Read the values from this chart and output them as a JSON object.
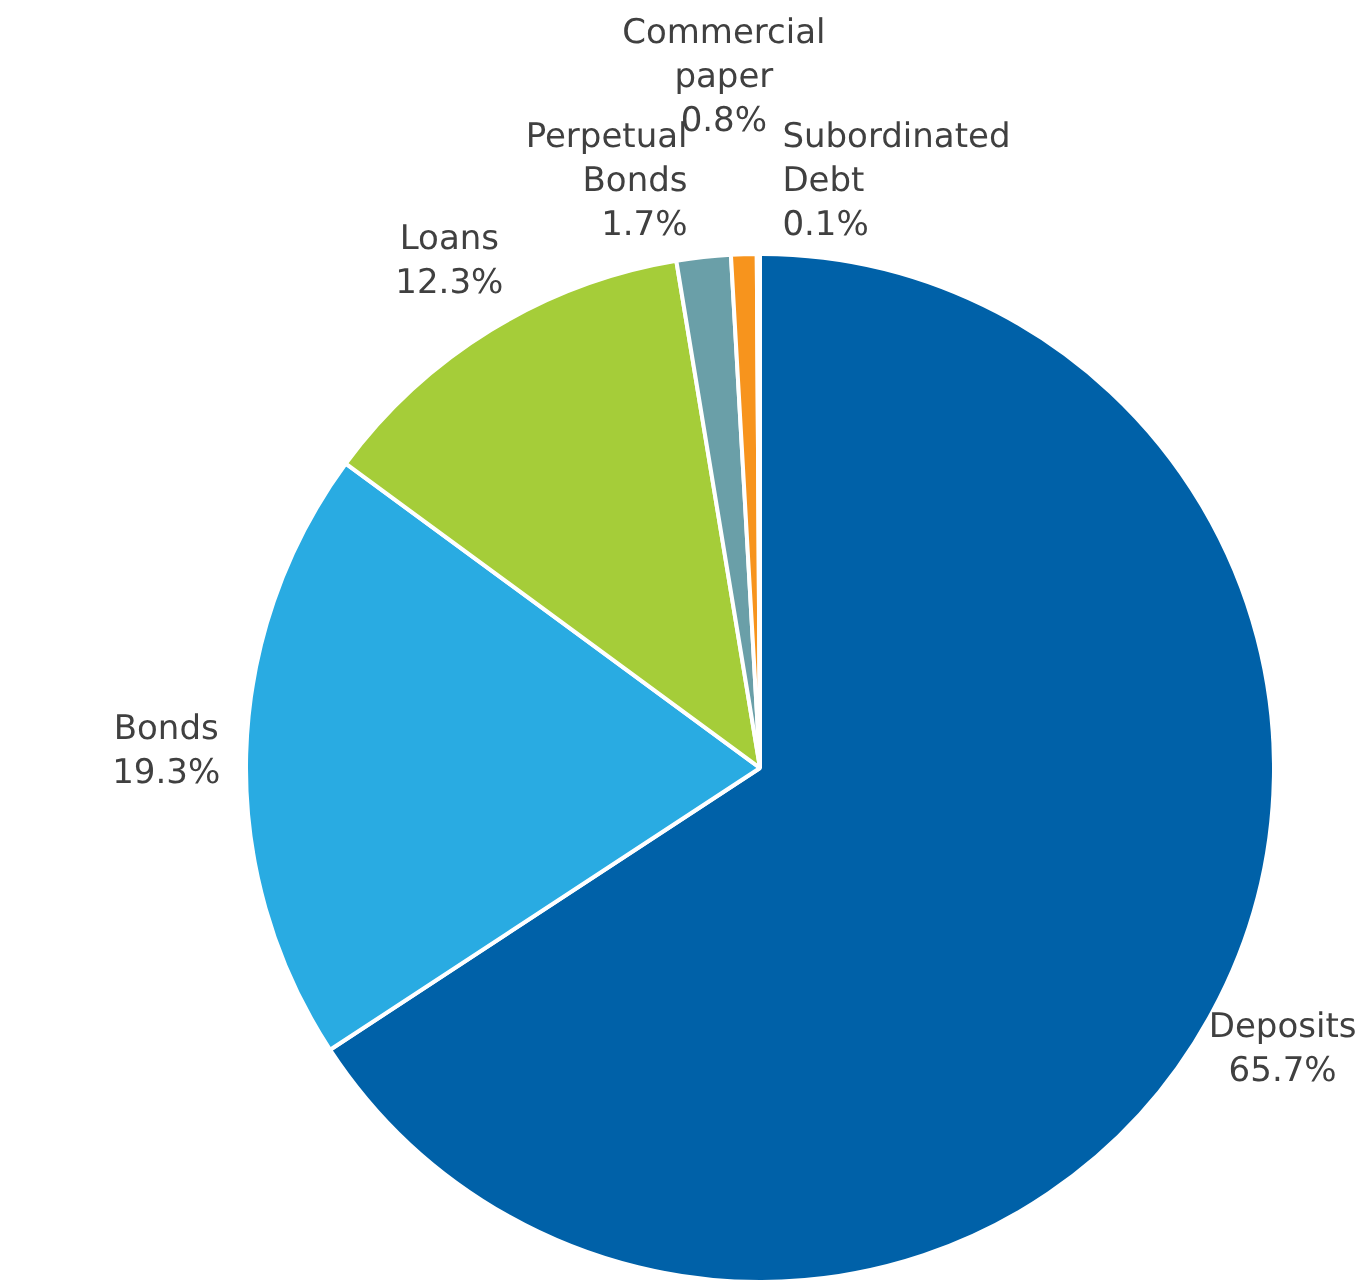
{
  "chart_data": {
    "type": "pie",
    "categories": [
      "Deposits",
      "Bonds",
      "Loans",
      "Perpetual Bonds",
      "Commercial paper",
      "Subordinated Debt"
    ],
    "values": [
      65.7,
      19.3,
      12.3,
      1.7,
      0.8,
      0.1
    ],
    "value_labels": [
      "65.7%",
      "19.3%",
      "12.3%",
      "1.7%",
      "0.8%",
      "0.1%"
    ],
    "colors": [
      "#0061a8",
      "#29abe2",
      "#a5cd39",
      "#6a9fa8",
      "#f7941d",
      "#b0b0b0"
    ]
  }
}
